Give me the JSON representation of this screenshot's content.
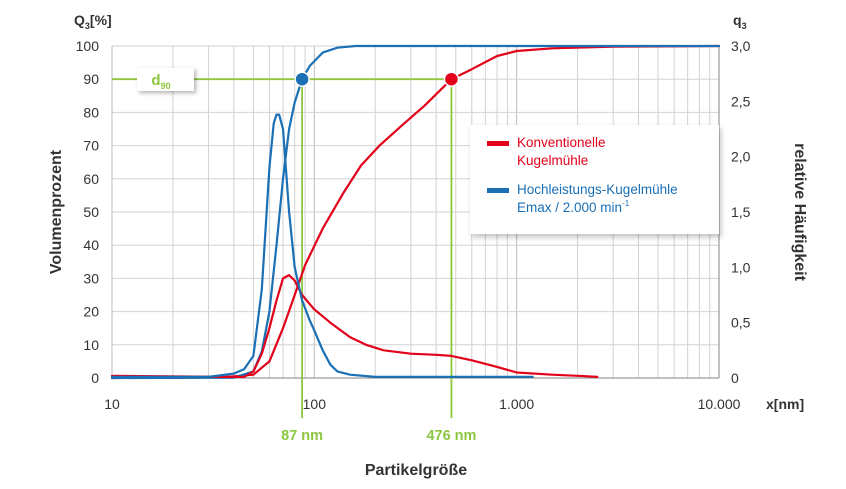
{
  "chart_data": {
    "type": "line",
    "xlabel": "Partikelgröße",
    "x_axis_unit_label": "x[nm]",
    "ylabel": "Volumenprozent",
    "y_axis_top_label": "Q3[%]",
    "y_axis_top_label_parts": {
      "main": "Q",
      "sub": "3",
      "rest": "[%]"
    },
    "y2label": "relative Häufigkeit",
    "y2_axis_top_label_parts": {
      "main": "q",
      "sub": "3"
    },
    "x_scale": "log",
    "xlim": [
      10,
      10000
    ],
    "ylim": [
      0,
      100
    ],
    "y2lim": [
      0,
      3.0
    ],
    "grid": true,
    "x_tick_labels": [
      {
        "value": 10,
        "label": "10"
      },
      {
        "value": 100,
        "label": "100"
      },
      {
        "value": 1000,
        "label": "1.000"
      },
      {
        "value": 10000,
        "label": "10.000"
      }
    ],
    "y_tick_labels": [
      {
        "value": 0,
        "label": "0"
      },
      {
        "value": 10,
        "label": "10"
      },
      {
        "value": 20,
        "label": "20"
      },
      {
        "value": 30,
        "label": "30"
      },
      {
        "value": 40,
        "label": "40"
      },
      {
        "value": 50,
        "label": "50"
      },
      {
        "value": 60,
        "label": "60"
      },
      {
        "value": 70,
        "label": "70"
      },
      {
        "value": 80,
        "label": "80"
      },
      {
        "value": 90,
        "label": "90"
      },
      {
        "value": 100,
        "label": "100"
      }
    ],
    "y2_tick_labels": [
      {
        "value": 0,
        "label": "0"
      },
      {
        "value": 0.5,
        "label": "0,5"
      },
      {
        "value": 1.0,
        "label": "1,0"
      },
      {
        "value": 1.5,
        "label": "1,5"
      },
      {
        "value": 2.0,
        "label": "2,0"
      },
      {
        "value": 2.5,
        "label": "2,5"
      },
      {
        "value": 3.0,
        "label": "3,0"
      }
    ],
    "legend": {
      "placement": "right",
      "entries": [
        {
          "series": "konventionell",
          "lines": [
            "Konventionelle",
            "Kugelmühle"
          ],
          "color": "#e2001a"
        },
        {
          "series": "hochleistung",
          "lines": [
            "Hochleistungs-Kugelmühle",
            "Emax / 2.000 min"
          ],
          "sup": "-1",
          "color": "#1a6fb5"
        }
      ]
    },
    "d90": {
      "label_main": "d",
      "label_sub": "90",
      "y": 90,
      "markers": [
        {
          "x": 87,
          "series": "hochleistung",
          "label": "87 nm",
          "color": "#1a6fb5"
        },
        {
          "x": 476,
          "series": "konventionell",
          "label": "476 nm",
          "color": "#e2001a"
        }
      ],
      "guide_color": "#8cc63f"
    },
    "series": [
      {
        "id": "konventionell",
        "curve": "cumulative",
        "color": "#e2001a",
        "axis": "left",
        "x": [
          10,
          35,
          50,
          60,
          70,
          80,
          90,
          110,
          140,
          170,
          210,
          270,
          350,
          476,
          600,
          800,
          1000,
          1500,
          3000,
          10000
        ],
        "y": [
          0,
          0.2,
          1,
          5,
          15,
          25,
          34,
          45,
          56,
          64,
          70,
          76,
          82,
          90,
          93,
          97,
          98.5,
          99.3,
          99.8,
          100
        ]
      },
      {
        "id": "hochleistung",
        "curve": "cumulative",
        "color": "#1a6fb5",
        "axis": "left",
        "x": [
          10,
          40,
          50,
          55,
          60,
          65,
          70,
          75,
          80,
          87,
          95,
          110,
          130,
          160,
          200,
          300,
          10000
        ],
        "y": [
          0,
          0.1,
          2,
          8,
          20,
          40,
          60,
          75,
          83,
          90,
          94,
          98,
          99.5,
          100,
          100,
          100,
          100
        ]
      },
      {
        "id": "konventionell",
        "curve": "density",
        "color": "#e2001a",
        "axis": "right",
        "x": [
          10,
          35,
          45,
          50,
          55,
          60,
          65,
          70,
          75,
          80,
          87,
          100,
          120,
          150,
          180,
          220,
          300,
          400,
          476,
          600,
          800,
          1000,
          1500,
          2000,
          2500
        ],
        "y": [
          0.02,
          0.01,
          0.01,
          0.06,
          0.22,
          0.45,
          0.7,
          0.9,
          0.93,
          0.88,
          0.75,
          0.62,
          0.5,
          0.37,
          0.3,
          0.25,
          0.22,
          0.21,
          0.2,
          0.16,
          0.1,
          0.05,
          0.03,
          0.02,
          0.01
        ]
      },
      {
        "id": "hochleistung",
        "curve": "density",
        "color": "#1a6fb5",
        "axis": "right",
        "x": [
          10,
          30,
          40,
          45,
          50,
          55,
          60,
          63,
          65,
          67,
          70,
          75,
          80,
          87,
          95,
          100,
          110,
          120,
          130,
          150,
          200,
          300,
          500,
          1000,
          1200
        ],
        "y": [
          0.01,
          0.01,
          0.04,
          0.08,
          0.2,
          0.8,
          1.9,
          2.3,
          2.38,
          2.38,
          2.25,
          1.5,
          1.0,
          0.7,
          0.52,
          0.43,
          0.25,
          0.12,
          0.06,
          0.03,
          0.01,
          0.01,
          0.01,
          0.01,
          0.01
        ]
      }
    ]
  }
}
